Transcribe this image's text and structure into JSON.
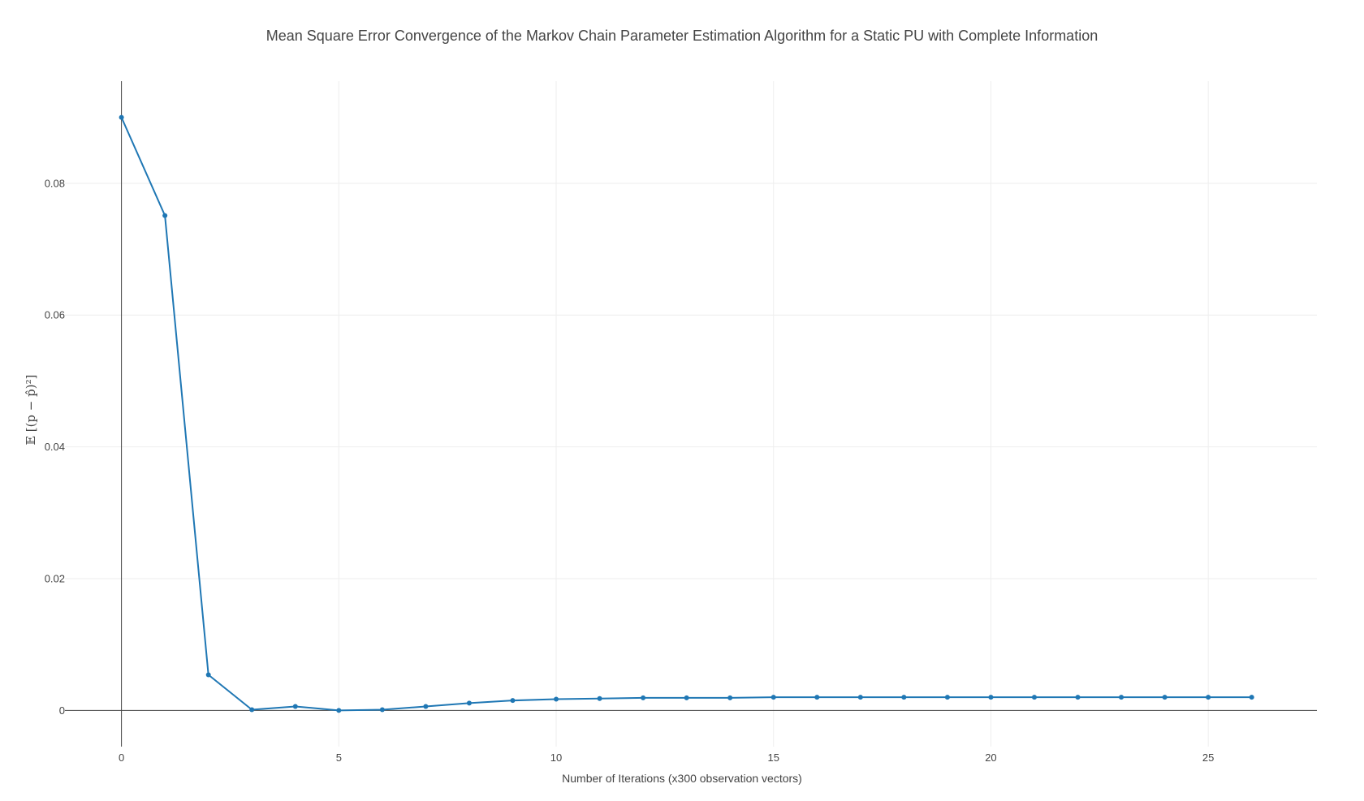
{
  "chart_data": {
    "type": "line",
    "title": "Mean Square Error Convergence of the Markov Chain Parameter Estimation Algorithm for a Static PU with Complete Information",
    "xlabel": "Number of Iterations (x300 observation vectors)",
    "ylabel": "𝔼 [(p − p̂)²]",
    "xlim": [
      -1.3,
      27.5
    ],
    "ylim": [
      -0.0055,
      0.0955
    ],
    "x_ticks": [
      0,
      5,
      10,
      15,
      20,
      25
    ],
    "x_tick_labels": [
      "0",
      "5",
      "10",
      "15",
      "20",
      "25"
    ],
    "y_ticks": [
      0,
      0.02,
      0.04,
      0.06,
      0.08
    ],
    "y_tick_labels": [
      "0",
      "0.02",
      "0.04",
      "0.06",
      "0.08"
    ],
    "grid": true,
    "series": [
      {
        "color": "#1f77b4",
        "x": [
          0,
          1,
          2,
          3,
          4,
          5,
          6,
          7,
          8,
          9,
          10,
          11,
          12,
          13,
          14,
          15,
          16,
          17,
          18,
          19,
          20,
          21,
          22,
          23,
          24,
          25,
          26
        ],
        "values": [
          0.09,
          0.0751,
          0.0054,
          0.0001,
          0.0006,
          0.0,
          0.0001,
          0.0006,
          0.0011,
          0.0015,
          0.0017,
          0.0018,
          0.0019,
          0.0019,
          0.0019,
          0.002,
          0.002,
          0.002,
          0.002,
          0.002,
          0.002,
          0.002,
          0.002,
          0.002,
          0.002,
          0.002,
          0.002
        ]
      }
    ]
  }
}
